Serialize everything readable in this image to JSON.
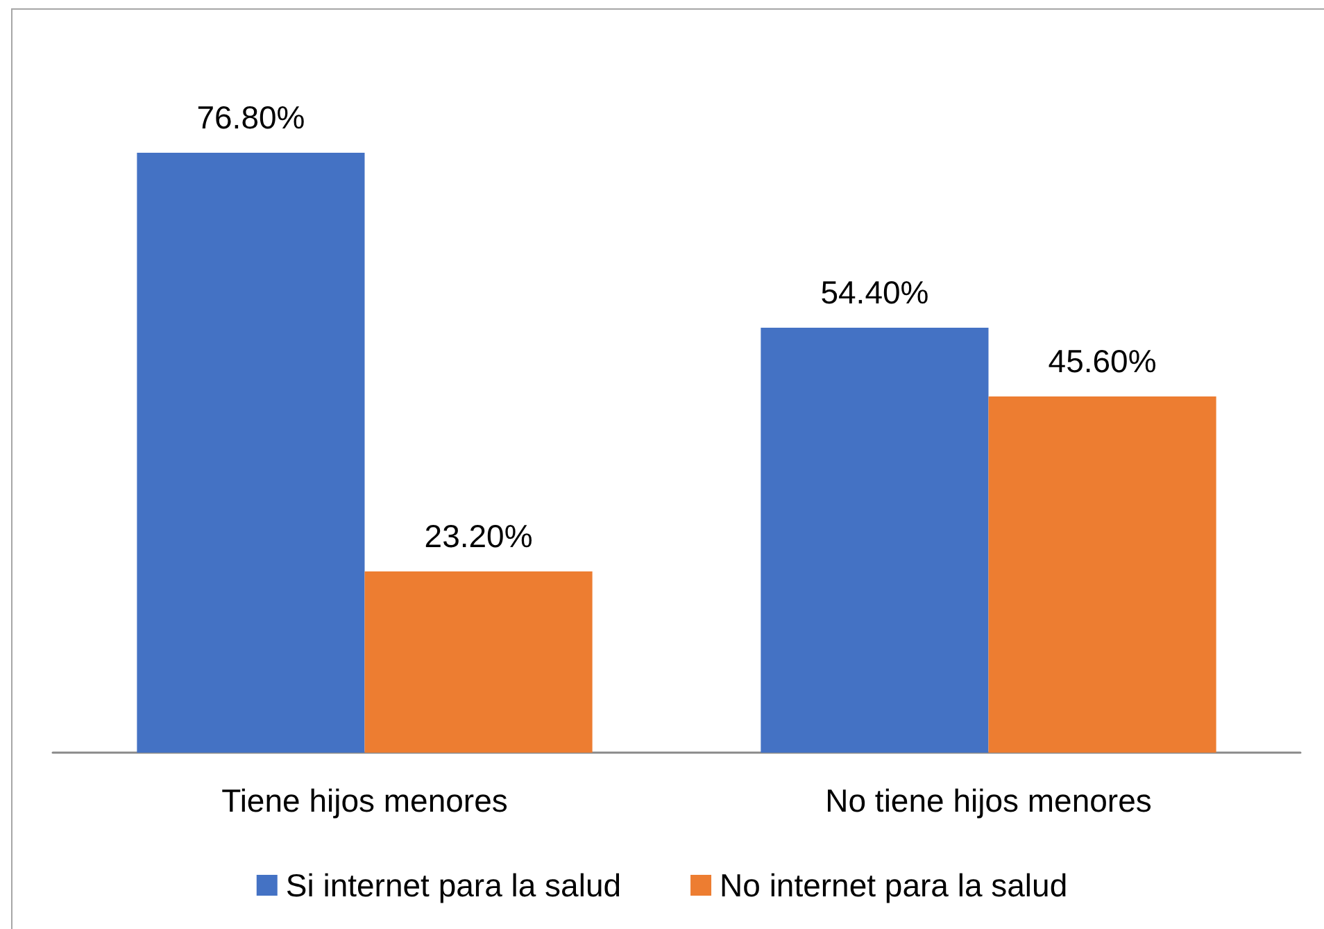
{
  "chart_data": {
    "type": "bar",
    "categories": [
      "Tiene hijos menores",
      "No tiene hijos menores"
    ],
    "series": [
      {
        "name": "Si internet para la salud",
        "color": "#4472c4",
        "values": [
          76.8,
          54.4
        ],
        "value_labels": [
          "76.80%",
          "54.40%"
        ]
      },
      {
        "name": "No internet para la salud",
        "color": "#ed7d31",
        "values": [
          23.2,
          45.6
        ],
        "value_labels": [
          "23.20%",
          "45.60%"
        ]
      }
    ],
    "legend": "bottom",
    "tick_labels": "x"
  }
}
